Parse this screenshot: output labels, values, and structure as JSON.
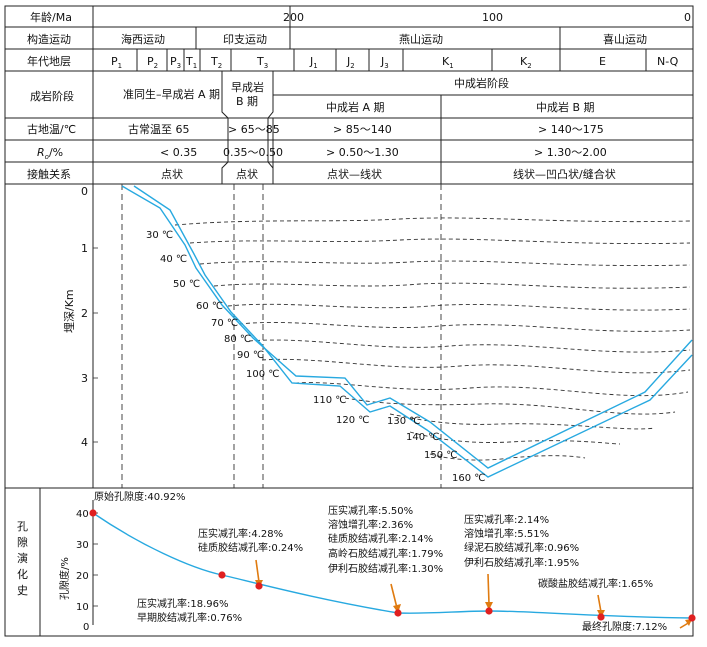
{
  "header": {
    "age_label": "年龄/Ma",
    "age_ticks": [
      "200",
      "100",
      "0"
    ],
    "orogeny_label": "构造运动",
    "orogenies": [
      "海西运动",
      "印支运动",
      "燕山运动",
      "喜山运动"
    ],
    "strata_label": "年代地层",
    "strata": [
      {
        "main": "P",
        "sub": "1"
      },
      {
        "main": "P",
        "sub": "2"
      },
      {
        "main": "P",
        "sub": "3"
      },
      {
        "main": "T",
        "sub": "1"
      },
      {
        "main": "T",
        "sub": "2"
      },
      {
        "main": "T",
        "sub": "3"
      },
      {
        "main": "J",
        "sub": "1"
      },
      {
        "main": "J",
        "sub": "2"
      },
      {
        "main": "J",
        "sub": "3"
      },
      {
        "main": "K",
        "sub": "1"
      },
      {
        "main": "K",
        "sub": "2"
      },
      {
        "main": "E",
        "sub": ""
      },
      {
        "main": "N-Q",
        "sub": ""
      }
    ],
    "diagenesis_label": "成岩阶段",
    "diagenesis": {
      "stage1": "准同生–早成岩 A 期",
      "stage2_line1": "早成岩",
      "stage2_line2": "B 期",
      "middle": "中成岩阶段",
      "middle_a": "中成岩 A 期",
      "middle_b": "中成岩 B 期"
    },
    "temp_label": "古地温/℃",
    "temps": [
      "古常温至 65",
      "> 65～85",
      "> 85～140",
      "> 140～175"
    ],
    "ro_label_main": "R",
    "ro_label_sub": "o",
    "ro_label_tail": "/%",
    "ro": [
      "< 0.35",
      "0.35～0.50",
      "> 0.50～1.30",
      "> 1.30～2.00"
    ],
    "contact_label": "接触关系",
    "contacts": [
      "点状",
      "点状",
      "点状—线状",
      "线状—凹凸状/缝合状"
    ]
  },
  "burial": {
    "ylabel": "埋深/Km",
    "depth_ticks": [
      "0",
      "1",
      "2",
      "3",
      "4"
    ],
    "isotherms": [
      "30 ℃",
      "40 ℃",
      "50 ℃",
      "60 ℃",
      "70 ℃",
      "80 ℃",
      "90 ℃",
      "100 ℃",
      "110 ℃",
      "120 ℃",
      "130 ℃",
      "140 ℃",
      "150 ℃",
      "160 ℃"
    ]
  },
  "porosity": {
    "side_label": [
      "孔",
      "隙",
      "演",
      "化",
      "史"
    ],
    "ylabel": "孔隙度/%",
    "ticks": [
      "40",
      "30",
      "20",
      "10",
      "0"
    ],
    "ann_initial": "原始孔隙度:40.92%",
    "ann_early": [
      "压实减孔率:18.96%",
      "早期胶结减孔率:0.76%"
    ],
    "ann_b": [
      "压实减孔率:4.28%",
      "硅质胶结减孔率:0.24%"
    ],
    "ann_c": [
      "压实减孔率:5.50%",
      "溶蚀增孔率:2.36%",
      "硅质胶结减孔率:2.14%",
      "高岭石胶结减孔率:1.79%",
      "伊利石胶结减孔率:1.30%"
    ],
    "ann_d": [
      "压实减孔率:2.14%",
      "溶蚀增孔率:5.51%",
      "绿泥石胶结减孔率:0.96%",
      "伊利石胶结减孔率:1.95%"
    ],
    "ann_e": "碳酸盐胶结减孔率:1.65%",
    "ann_final": "最终孔隙度:7.12%"
  },
  "colors": {
    "curve": "#28a9e0",
    "marker": "#e02020",
    "arrow": "#e07b10",
    "line": "#222222"
  }
}
